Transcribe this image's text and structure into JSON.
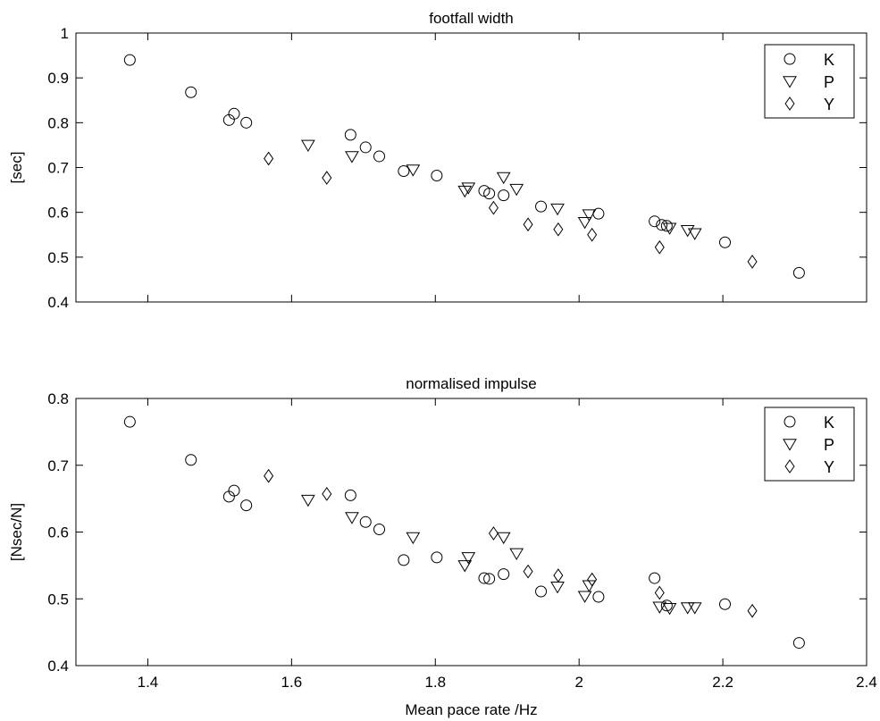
{
  "chart_data": [
    {
      "type": "scatter",
      "title": "footfall width",
      "xlabel": "",
      "ylabel": "[sec]",
      "xlim": [
        1.3,
        2.4
      ],
      "ylim": [
        0.4,
        1.0
      ],
      "yticks": [
        "0.4",
        "0.5",
        "0.6",
        "0.7",
        "0.8",
        "0.9",
        "1"
      ],
      "xticks_labeled": false,
      "grid": false,
      "legend_position": "top-right",
      "series": [
        {
          "name": "K",
          "marker": "circle",
          "points": [
            [
              1.375,
              0.94
            ],
            [
              1.46,
              0.868
            ],
            [
              1.513,
              0.806
            ],
            [
              1.52,
              0.82
            ],
            [
              1.537,
              0.8
            ],
            [
              1.682,
              0.773
            ],
            [
              1.703,
              0.745
            ],
            [
              1.722,
              0.725
            ],
            [
              1.756,
              0.692
            ],
            [
              1.802,
              0.682
            ],
            [
              1.868,
              0.648
            ],
            [
              1.875,
              0.642
            ],
            [
              1.895,
              0.638
            ],
            [
              1.947,
              0.613
            ],
            [
              2.027,
              0.597
            ],
            [
              2.105,
              0.58
            ],
            [
              2.115,
              0.572
            ],
            [
              2.122,
              0.57
            ],
            [
              2.203,
              0.533
            ],
            [
              2.306,
              0.465
            ]
          ]
        },
        {
          "name": "P",
          "marker": "triangle-down",
          "points": [
            [
              1.623,
              0.75
            ],
            [
              1.684,
              0.725
            ],
            [
              1.769,
              0.695
            ],
            [
              1.841,
              0.648
            ],
            [
              1.846,
              0.655
            ],
            [
              1.895,
              0.678
            ],
            [
              1.913,
              0.652
            ],
            [
              1.97,
              0.608
            ],
            [
              2.008,
              0.578
            ],
            [
              2.014,
              0.595
            ],
            [
              2.126,
              0.565
            ],
            [
              2.151,
              0.56
            ],
            [
              2.161,
              0.553
            ]
          ]
        },
        {
          "name": "Y",
          "marker": "diamond",
          "points": [
            [
              1.568,
              0.72
            ],
            [
              1.649,
              0.677
            ],
            [
              1.881,
              0.61
            ],
            [
              1.929,
              0.573
            ],
            [
              1.971,
              0.562
            ],
            [
              2.018,
              0.55
            ],
            [
              2.112,
              0.522
            ],
            [
              2.241,
              0.49
            ]
          ]
        }
      ]
    },
    {
      "type": "scatter",
      "title": "normalised impulse",
      "xlabel": "Mean pace rate /Hz",
      "ylabel": "[Nsec/N]",
      "xlim": [
        1.3,
        2.4
      ],
      "ylim": [
        0.4,
        0.8
      ],
      "yticks": [
        "0.4",
        "0.5",
        "0.6",
        "0.7",
        "0.8"
      ],
      "xticks": [
        "1.4",
        "1.6",
        "1.8",
        "2",
        "2.2",
        "2.4"
      ],
      "xticks_labeled": true,
      "grid": false,
      "legend_position": "top-right",
      "series": [
        {
          "name": "K",
          "marker": "circle",
          "points": [
            [
              1.375,
              0.765
            ],
            [
              1.46,
              0.708
            ],
            [
              1.513,
              0.653
            ],
            [
              1.52,
              0.662
            ],
            [
              1.537,
              0.64
            ],
            [
              1.682,
              0.655
            ],
            [
              1.703,
              0.615
            ],
            [
              1.722,
              0.604
            ],
            [
              1.756,
              0.558
            ],
            [
              1.802,
              0.562
            ],
            [
              1.868,
              0.531
            ],
            [
              1.875,
              0.53
            ],
            [
              1.895,
              0.537
            ],
            [
              1.947,
              0.511
            ],
            [
              2.027,
              0.503
            ],
            [
              2.105,
              0.531
            ],
            [
              2.122,
              0.49
            ],
            [
              2.203,
              0.492
            ],
            [
              2.306,
              0.434
            ]
          ]
        },
        {
          "name": "P",
          "marker": "triangle-down",
          "points": [
            [
              1.623,
              0.648
            ],
            [
              1.684,
              0.622
            ],
            [
              1.769,
              0.592
            ],
            [
              1.841,
              0.55
            ],
            [
              1.846,
              0.562
            ],
            [
              1.895,
              0.592
            ],
            [
              1.913,
              0.568
            ],
            [
              1.97,
              0.518
            ],
            [
              2.008,
              0.504
            ],
            [
              2.014,
              0.52
            ],
            [
              2.112,
              0.488
            ],
            [
              2.126,
              0.486
            ],
            [
              2.151,
              0.487
            ],
            [
              2.161,
              0.487
            ]
          ]
        },
        {
          "name": "Y",
          "marker": "diamond",
          "points": [
            [
              1.568,
              0.684
            ],
            [
              1.649,
              0.657
            ],
            [
              1.881,
              0.598
            ],
            [
              1.929,
              0.541
            ],
            [
              1.971,
              0.535
            ],
            [
              2.018,
              0.529
            ],
            [
              2.112,
              0.509
            ],
            [
              2.241,
              0.482
            ]
          ]
        }
      ]
    }
  ]
}
